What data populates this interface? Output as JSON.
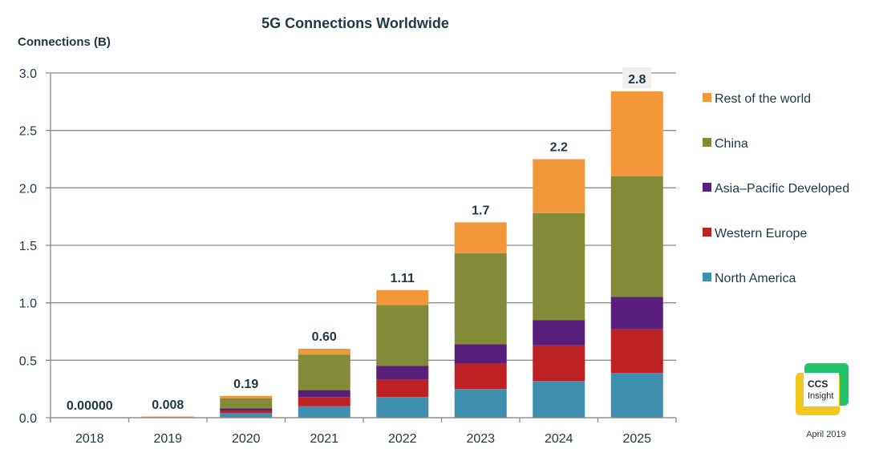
{
  "chart_data": {
    "type": "bar",
    "stacked": true,
    "title": "5G Connections Worldwide",
    "xlabel": "",
    "ylabel": "Connections (B)",
    "ylim": [
      0,
      3.0
    ],
    "yticks": [
      "0.0",
      "0.5",
      "1.0",
      "1.5",
      "2.0",
      "2.5",
      "3.0"
    ],
    "grid": true,
    "legend_position": "right",
    "categories": [
      "2018",
      "2019",
      "2020",
      "2021",
      "2022",
      "2023",
      "2024",
      "2025"
    ],
    "series": [
      {
        "name": "North America",
        "color": "#3f8fae",
        "values": [
          0,
          0,
          0.04,
          0.1,
          0.18,
          0.25,
          0.32,
          0.39
        ]
      },
      {
        "name": "Western Europe",
        "color": "#be2124",
        "values": [
          0,
          0,
          0.02,
          0.08,
          0.15,
          0.22,
          0.31,
          0.38
        ]
      },
      {
        "name": "Asia–Pacific Developed",
        "color": "#581f7c",
        "values": [
          0,
          0,
          0.02,
          0.06,
          0.12,
          0.17,
          0.22,
          0.28
        ]
      },
      {
        "name": "China",
        "color": "#838a38",
        "values": [
          0,
          0,
          0.09,
          0.31,
          0.53,
          0.79,
          0.93,
          1.05
        ]
      },
      {
        "name": "Rest of the world",
        "color": "#f3973b",
        "values": [
          0,
          0.008,
          0.02,
          0.05,
          0.13,
          0.27,
          0.47,
          0.74
        ]
      }
    ],
    "totals_labels": [
      "0.00000",
      "0.008",
      "0.19",
      "0.60",
      "1.11",
      "1.7",
      "2.2",
      "2.8"
    ],
    "legend_order": [
      "Rest of the world",
      "China",
      "Asia–Pacific Developed",
      "Western Europe",
      "North America"
    ]
  },
  "branding": {
    "logo_line1": "CCS",
    "logo_line2": "Insight",
    "date": "April 2019",
    "logo_green": "#1ec36a",
    "logo_yellow": "#f2c81e"
  }
}
